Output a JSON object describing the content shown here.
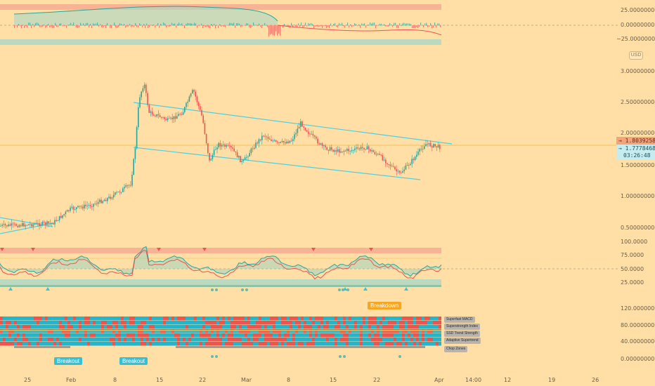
{
  "price_axis": {
    "currency": "USD",
    "top_pane_labels": [
      "25.00000000",
      "0.00000000",
      "−25.00000000"
    ],
    "main_pane_labels": [
      "3.00000000",
      "2.50000000",
      "2.00000000",
      "1.50000000",
      "1.00000000",
      "0.50000000"
    ],
    "mid_pane_labels": [
      "100.0000",
      "75.0000",
      "50.0000",
      "25.0000"
    ],
    "bottom_pane_labels": [
      "120.00000000",
      "80.00000000",
      "40.00000000",
      "0.00000000"
    ]
  },
  "price_tags": {
    "upper_value": "1.80392583",
    "current_value": "1.77784684",
    "countdown": "03:26:48"
  },
  "indicator_labels": [
    "Superfast MACD",
    "Superstrength Index",
    "SSD Trend Strength",
    "Adaptive Supertrend",
    "Chop Zones"
  ],
  "signals": {
    "breakdown": "Breakdown",
    "breakout_1": "Breakout",
    "breakout_2": "Breakout"
  },
  "time_axis": [
    "25",
    "Feb",
    "8",
    "15",
    "22",
    "Mar",
    "8",
    "15",
    "22",
    "Apr",
    "14:00",
    "12",
    "19",
    "26"
  ],
  "colors": {
    "background": "#ffdfa6",
    "up": "#26a69a",
    "down": "#ef5350",
    "channel": "#4dd0e1",
    "band_red": "#f4a08c",
    "band_teal": "#a8d8c8",
    "orange_badge": "#f5a623",
    "cyan_badge": "#35c0d6"
  }
}
